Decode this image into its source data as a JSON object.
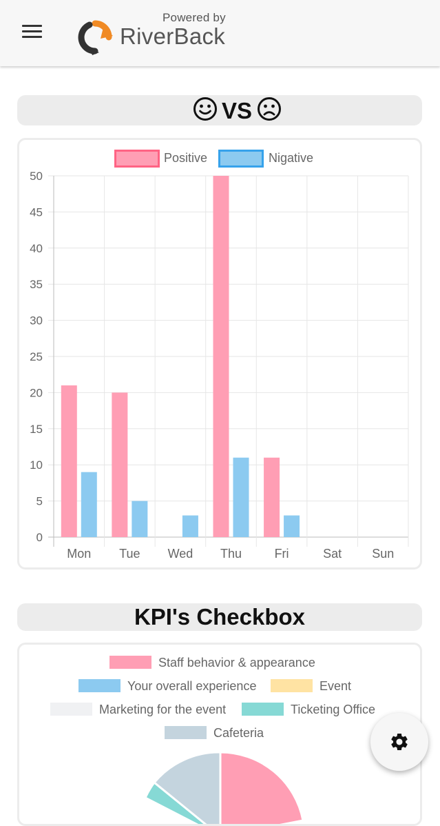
{
  "header": {
    "menu_icon": "hamburger-icon",
    "powered_by": "Powered by",
    "brand_name": "RiverBack"
  },
  "sentiment_section": {
    "title_text": "VS",
    "left_icon": "smile-face-icon",
    "right_icon": "frown-face-icon"
  },
  "kpi_section": {
    "title": "KPI's Checkbox"
  },
  "settings_button": {
    "icon": "gear-icon"
  },
  "chart_data": [
    {
      "type": "bar",
      "categories": [
        "Mon",
        "Tue",
        "Wed",
        "Thu",
        "Fri",
        "Sat",
        "Sun"
      ],
      "series": [
        {
          "name": "Positive",
          "values": [
            21,
            20,
            0,
            50,
            11,
            0,
            0
          ],
          "color": "#ff9eb4",
          "border": "#ff6384"
        },
        {
          "name": "Nigative",
          "values": [
            9,
            5,
            3,
            11,
            3,
            0,
            0
          ],
          "color": "#8ccaf0",
          "border": "#36a2eb"
        }
      ],
      "yticks": [
        0,
        5,
        10,
        15,
        20,
        25,
        30,
        35,
        40,
        45,
        50
      ],
      "ylim": [
        0,
        50
      ],
      "grid": true,
      "legend": "top"
    },
    {
      "type": "pie",
      "legend": "top",
      "labels": [
        "Staff behavior & appearance",
        "Your overall experience",
        "Event",
        "Marketing for the event",
        "Ticketing Office",
        "Cafeteria"
      ],
      "colors": [
        "#ff9eb4",
        "#8ccaf0",
        "#ffe3a3",
        "#f0f1f3",
        "#86d9d5",
        "#c4d4de"
      ],
      "values": [
        null,
        null,
        null,
        null,
        null,
        null
      ]
    }
  ]
}
